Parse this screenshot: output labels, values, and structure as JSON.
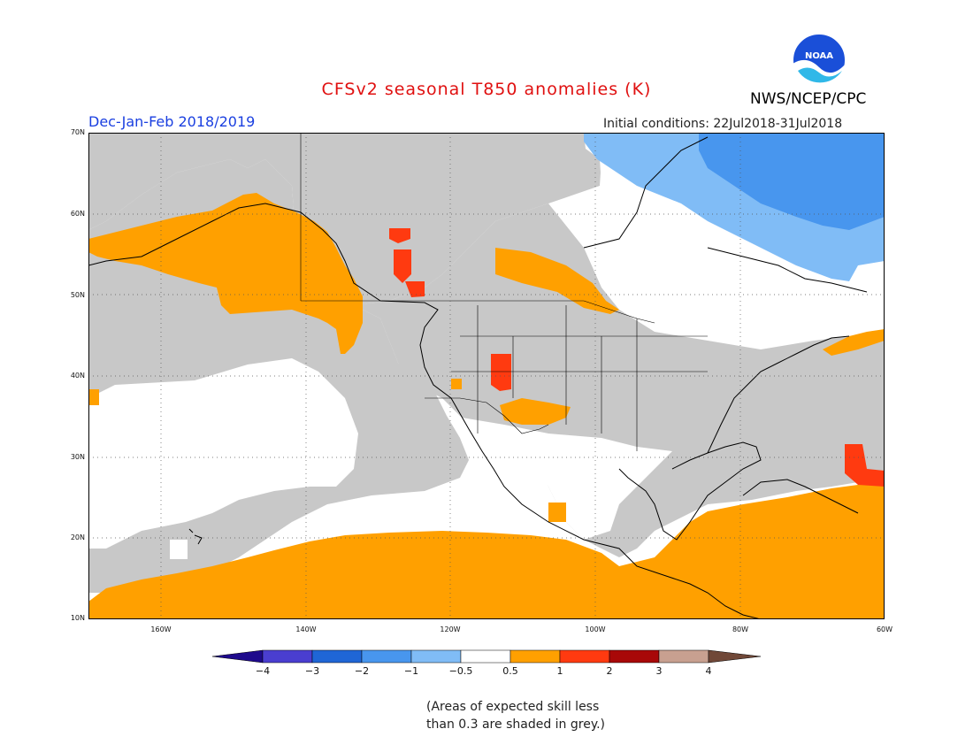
{
  "header": {
    "title": "CFSv2 seasonal T850 anomalies (K)",
    "agency": "NWS/NCEP/CPC",
    "season": "Dec-Jan-Feb 2018/2019",
    "initial_conditions": "Initial conditions: 22Jul2018-31Jul2018",
    "logo_text": "NOAA"
  },
  "map": {
    "lon_range": [
      -172,
      -60
    ],
    "lat_range": [
      10,
      70
    ],
    "lat_labels": [
      "70N",
      "60N",
      "50N",
      "40N",
      "30N",
      "20N",
      "10N"
    ],
    "lon_labels": [
      "160W",
      "140W",
      "120W",
      "100W",
      "80W",
      "60W"
    ],
    "grid": true
  },
  "colorbar": {
    "labels": [
      "−4",
      "−3",
      "−2",
      "−1",
      "−0.5",
      "0.5",
      "1",
      "2",
      "3",
      "4"
    ],
    "colors": [
      "#1e0a8c",
      "#4a3ed0",
      "#1f66d6",
      "#4896ee",
      "#80bcf6",
      "#ffffff",
      "#ffa000",
      "#ff3a10",
      "#a80808",
      "#c8a090",
      "#704838"
    ]
  },
  "colors": {
    "skill_grey": "#c8c8c8",
    "warm_0_5_1": "#ffa000",
    "warm_1_2": "#ff3a10",
    "cool_neg1_neg0_5": "#80bcf6",
    "cool_neg2_neg1": "#4896ee"
  },
  "note": {
    "line1": "(Areas of expected skill less",
    "line2": "than 0.3 are shaded in grey.)"
  }
}
